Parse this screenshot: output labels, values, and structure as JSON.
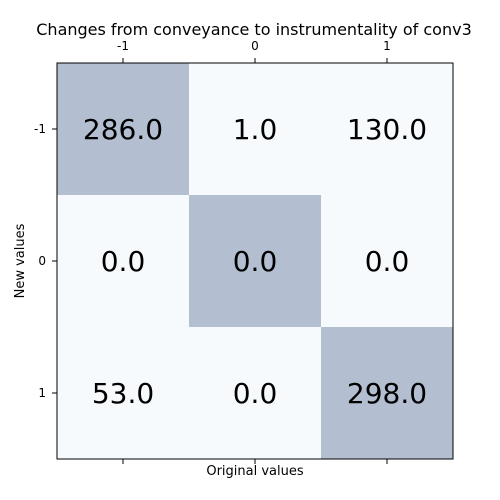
{
  "chart_data": {
    "type": "heatmap",
    "title": "Changes from conveyance to instrumentality of conv3",
    "xlabel": "Original values",
    "ylabel": "New values",
    "x_categories": [
      "-1",
      "0",
      "1"
    ],
    "y_categories": [
      "-1",
      "0",
      "1"
    ],
    "values": [
      [
        286.0,
        1.0,
        130.0
      ],
      [
        0.0,
        0.0,
        0.0
      ],
      [
        53.0,
        0.0,
        298.0
      ]
    ],
    "cell_labels": [
      [
        "286.0",
        "1.0",
        "130.0"
      ],
      [
        "0.0",
        "0.0",
        "0.0"
      ],
      [
        "53.0",
        "0.0",
        "298.0"
      ]
    ],
    "highlight_color": "#b3bfd1",
    "base_color": "#f7fafd",
    "grid": false
  }
}
